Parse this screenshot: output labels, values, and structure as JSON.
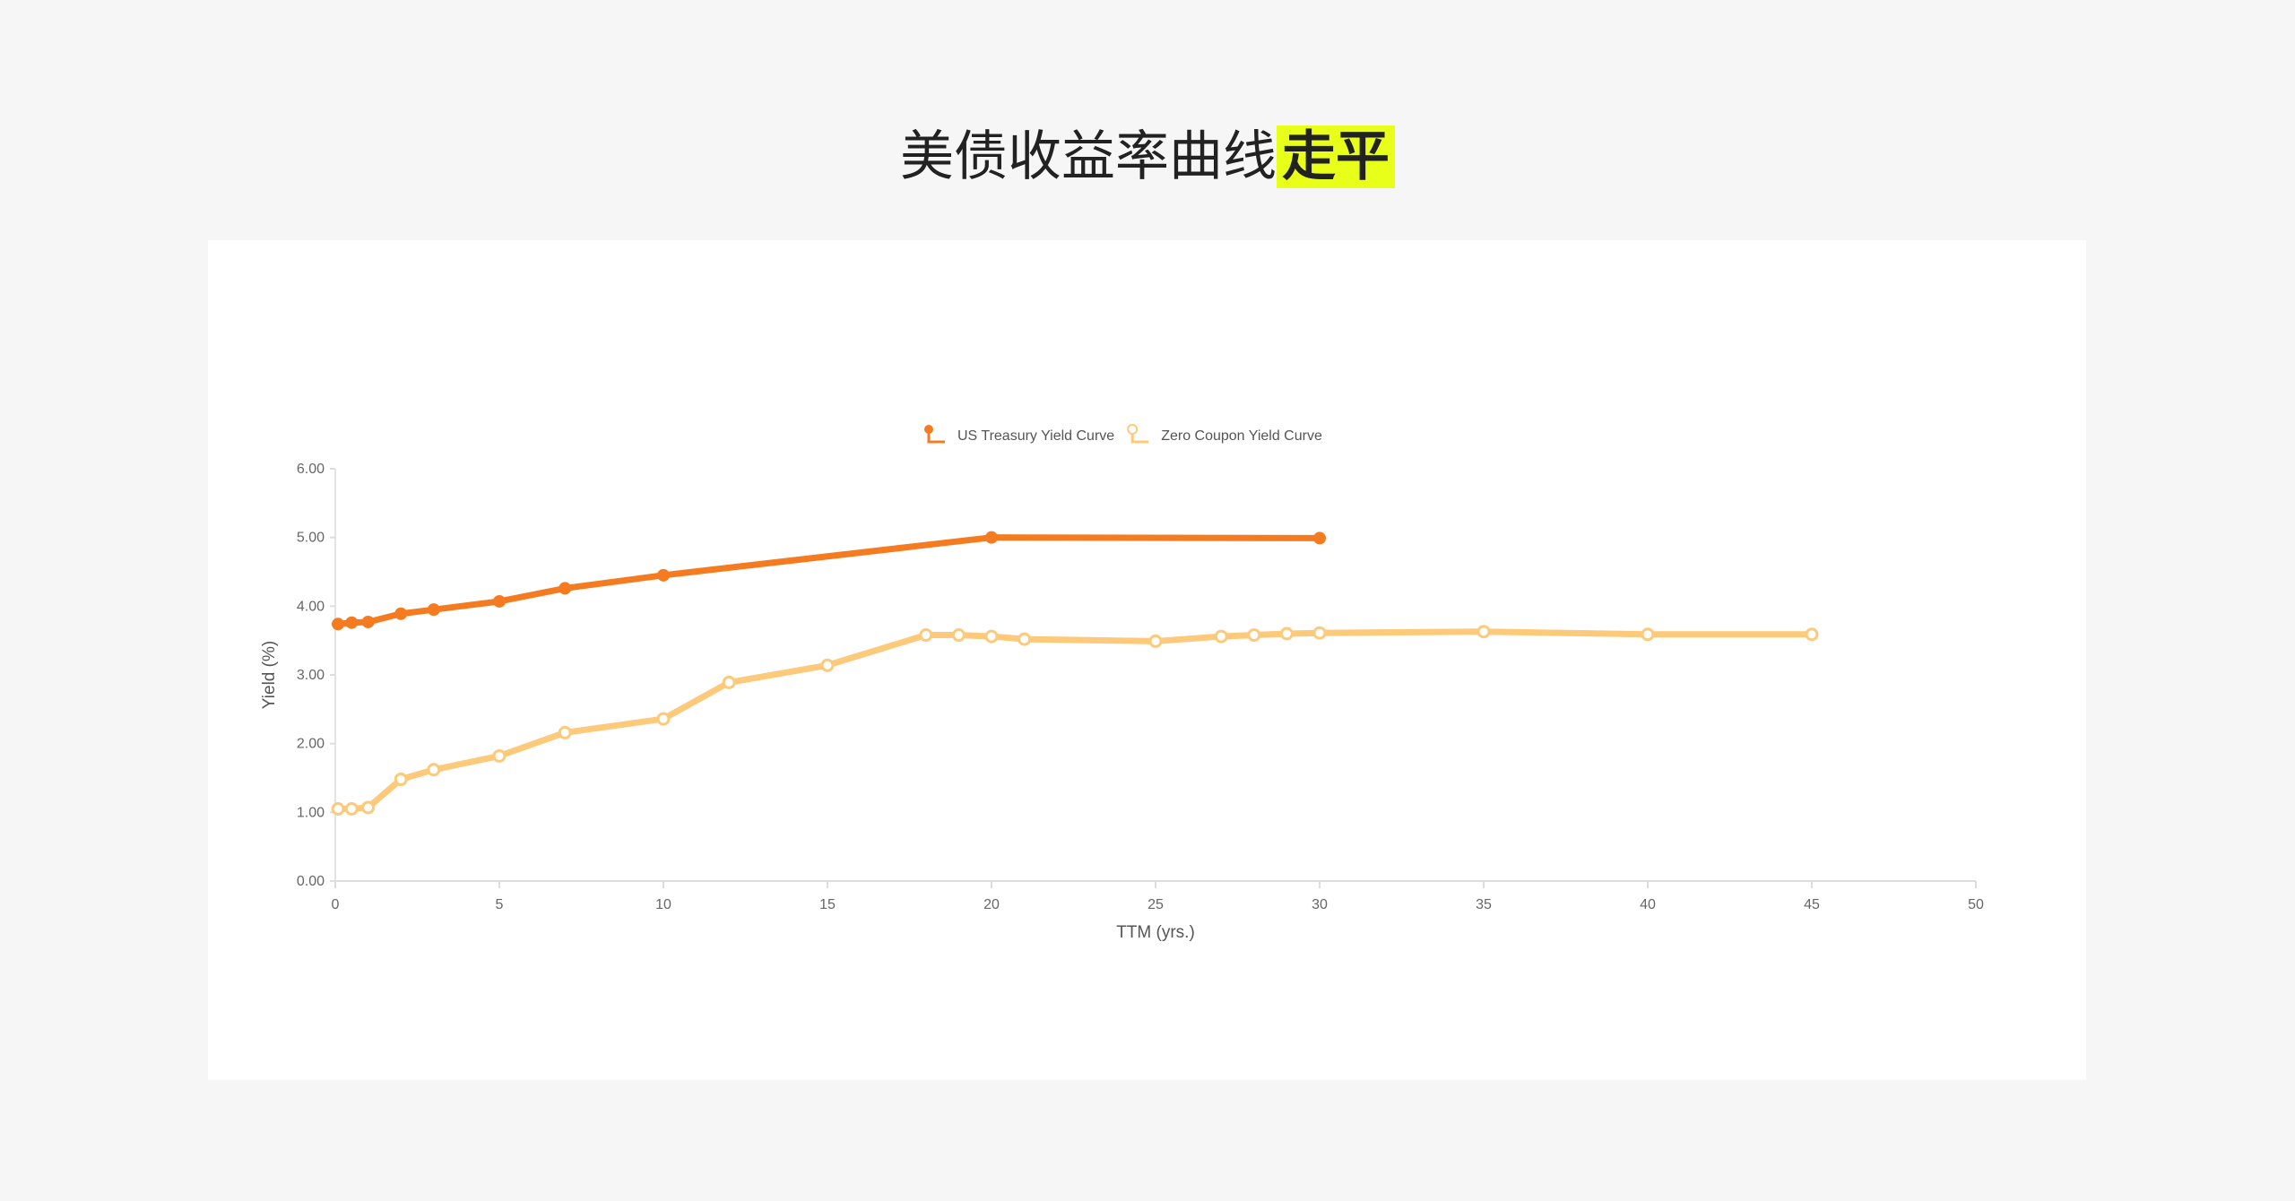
{
  "title": {
    "main": "美债收益率曲线",
    "highlight": "走平",
    "highlight_color": "#e8ff1a"
  },
  "chart_data": {
    "type": "line",
    "xlabel": "TTM (yrs.)",
    "ylabel": "Yield (%)",
    "xlim": [
      0,
      50
    ],
    "ylim": [
      0,
      6
    ],
    "xticks": [
      "0",
      "5",
      "10",
      "15",
      "20",
      "25",
      "30",
      "35",
      "40",
      "45",
      "50"
    ],
    "yticks": [
      "0.00",
      "1.00",
      "2.00",
      "3.00",
      "4.00",
      "5.00",
      "6.00"
    ],
    "legend_position": "top-center",
    "grid": false,
    "series": [
      {
        "name": "US Treasury Yield Curve",
        "color": "#f47b20",
        "marker": "filled-circle",
        "x": [
          0.083,
          0.5,
          1,
          2,
          3,
          5,
          7,
          10,
          20,
          30
        ],
        "y": [
          3.74,
          3.76,
          3.77,
          3.89,
          3.95,
          4.07,
          4.26,
          4.45,
          5.0,
          4.99
        ]
      },
      {
        "name": "Zero Coupon Yield Curve",
        "color": "#fdc97a",
        "marker": "hollow-circle",
        "x": [
          0.083,
          0.5,
          1,
          2,
          3,
          5,
          7,
          10,
          12,
          15,
          18,
          19,
          20,
          21,
          25,
          27,
          28,
          29,
          30,
          35,
          40,
          45
        ],
        "y": [
          1.05,
          1.05,
          1.07,
          1.48,
          1.62,
          1.82,
          2.16,
          2.36,
          2.89,
          3.14,
          3.58,
          3.58,
          3.56,
          3.52,
          3.49,
          3.56,
          3.58,
          3.6,
          3.61,
          3.63,
          3.59,
          3.59
        ]
      }
    ]
  }
}
